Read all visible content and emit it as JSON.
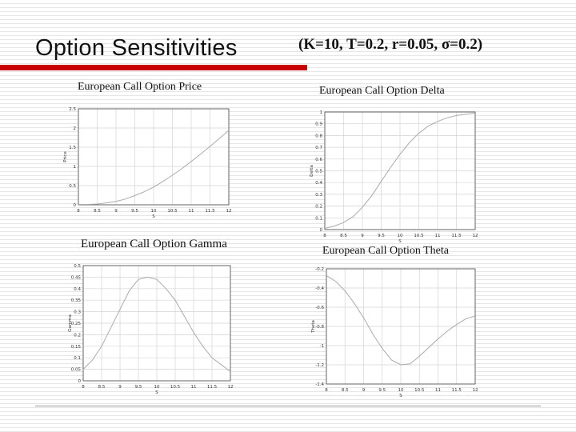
{
  "slide": {
    "title": "Option Sensitivities",
    "params": "(K=10, T=0.2, r=0.05, σ=0.2)"
  },
  "colors": {
    "accent_bar": "#c80000",
    "curve": "#aaaaaa",
    "grid": "#d4d4d4",
    "axis": "#444444"
  },
  "chart_data": [
    {
      "type": "line",
      "title": "European Call Option Price",
      "xlabel": "S",
      "ylabel": "Price",
      "xlim": [
        8,
        12
      ],
      "ylim": [
        0,
        2.5
      ],
      "xticks": [
        8,
        8.5,
        9,
        9.5,
        10,
        10.5,
        11,
        11.5,
        12
      ],
      "xtick_labels": [
        "8",
        "8.5",
        "9",
        "9.5",
        "10",
        "10.5",
        "11",
        "11.5",
        "12"
      ],
      "yticks": [
        0,
        0.5,
        1,
        1.5,
        2,
        2.5
      ],
      "ytick_labels": [
        "0",
        "0.5",
        "1",
        "1.5",
        "2",
        "2.5"
      ],
      "grid": true,
      "series": [
        {
          "x": [
            8,
            8.25,
            8.5,
            8.75,
            9,
            9.25,
            9.5,
            9.75,
            10,
            10.25,
            10.5,
            10.75,
            11,
            11.25,
            11.5,
            11.75,
            12
          ],
          "y": [
            0.01,
            0.01,
            0.02,
            0.05,
            0.09,
            0.15,
            0.24,
            0.34,
            0.46,
            0.61,
            0.77,
            0.94,
            1.13,
            1.32,
            1.52,
            1.73,
            1.94
          ]
        }
      ]
    },
    {
      "type": "line",
      "title": "European Call Option Delta",
      "xlabel": "S",
      "ylabel": "Delta",
      "xlim": [
        8,
        12
      ],
      "ylim": [
        0,
        1
      ],
      "xticks": [
        8,
        8.5,
        9,
        9.5,
        10,
        10.5,
        11,
        11.5,
        12
      ],
      "xtick_labels": [
        "8",
        "8.5",
        "9",
        "9.5",
        "10",
        "10.5",
        "11",
        "11.5",
        "12"
      ],
      "yticks": [
        0,
        0.1,
        0.2,
        0.3,
        0.4,
        0.5,
        0.6,
        0.7,
        0.8,
        0.9,
        1
      ],
      "ytick_labels": [
        "0",
        "0.1",
        "0.2",
        "0.3",
        "0.4",
        "0.5",
        "0.6",
        "0.7",
        "0.8",
        "0.9",
        "1"
      ],
      "grid": true,
      "series": [
        {
          "x": [
            8,
            8.25,
            8.5,
            8.75,
            9,
            9.25,
            9.5,
            9.75,
            10,
            10.25,
            10.5,
            10.75,
            11,
            11.25,
            11.5,
            11.75,
            12
          ],
          "y": [
            0.01,
            0.03,
            0.06,
            0.11,
            0.19,
            0.29,
            0.41,
            0.53,
            0.64,
            0.74,
            0.82,
            0.88,
            0.92,
            0.95,
            0.97,
            0.98,
            0.99
          ]
        }
      ]
    },
    {
      "type": "line",
      "title": "European Call Option Gamma",
      "xlabel": "S",
      "ylabel": "Gamma",
      "xlim": [
        8,
        12
      ],
      "ylim": [
        0,
        0.5
      ],
      "xticks": [
        8,
        8.5,
        9,
        9.5,
        10,
        10.5,
        11,
        11.5,
        12
      ],
      "xtick_labels": [
        "8",
        "8.5",
        "9",
        "9.5",
        "10",
        "10.5",
        "11",
        "11.5",
        "12"
      ],
      "yticks": [
        0,
        0.05,
        0.1,
        0.15,
        0.2,
        0.25,
        0.3,
        0.35,
        0.4,
        0.45,
        0.5
      ],
      "ytick_labels": [
        "0",
        "0.05",
        "0.1",
        "0.15",
        "0.2",
        "0.25",
        "0.3",
        "0.35",
        "0.4",
        "0.45",
        "0.5"
      ],
      "grid": true,
      "series": [
        {
          "x": [
            8,
            8.25,
            8.5,
            8.75,
            9,
            9.25,
            9.5,
            9.75,
            10,
            10.25,
            10.5,
            10.75,
            11,
            11.25,
            11.5,
            11.75,
            12
          ],
          "y": [
            0.05,
            0.09,
            0.15,
            0.23,
            0.31,
            0.39,
            0.44,
            0.45,
            0.44,
            0.4,
            0.35,
            0.28,
            0.21,
            0.15,
            0.1,
            0.07,
            0.04
          ]
        }
      ]
    },
    {
      "type": "line",
      "title": "European Call Option Theta",
      "xlabel": "S",
      "ylabel": "Theta",
      "xlim": [
        8,
        12
      ],
      "ylim": [
        -1.4,
        -0.2
      ],
      "xticks": [
        8,
        8.5,
        9,
        9.5,
        10,
        10.5,
        11,
        11.5,
        12
      ],
      "xtick_labels": [
        "8",
        "8.5",
        "9",
        "9.5",
        "10",
        "10.5",
        "11",
        "11.5",
        "12"
      ],
      "yticks": [
        -1.4,
        -1.2,
        -1,
        -0.8,
        -0.6,
        -0.4,
        -0.2
      ],
      "ytick_labels": [
        "-1.4",
        "-1.2",
        "-1",
        "-0.8",
        "-0.6",
        "-0.4",
        "-0.2"
      ],
      "grid": true,
      "series": [
        {
          "x": [
            8,
            8.25,
            8.5,
            8.75,
            9,
            9.25,
            9.5,
            9.75,
            10,
            10.25,
            10.5,
            10.75,
            11,
            11.25,
            11.5,
            11.75,
            12
          ],
          "y": [
            -0.27,
            -0.33,
            -0.43,
            -0.56,
            -0.71,
            -0.88,
            -1.03,
            -1.15,
            -1.2,
            -1.19,
            -1.11,
            -1.02,
            -0.93,
            -0.85,
            -0.78,
            -0.72,
            -0.69
          ]
        }
      ]
    }
  ]
}
